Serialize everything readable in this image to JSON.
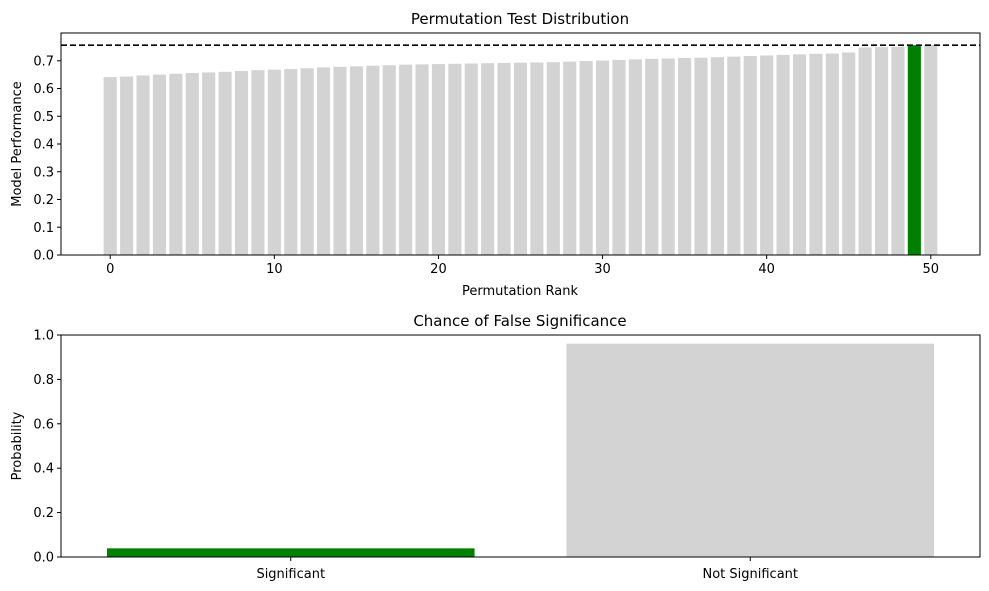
{
  "chart_data": [
    {
      "type": "bar",
      "title": "Permutation Test Distribution",
      "xlabel": "Permutation Rank",
      "ylabel": "Model Performance",
      "xlim": [
        -3,
        53
      ],
      "ylim": [
        0,
        0.8
      ],
      "xticks": [
        0,
        10,
        20,
        30,
        40,
        50
      ],
      "yticks": [
        0.0,
        0.1,
        0.2,
        0.3,
        0.4,
        0.5,
        0.6,
        0.7
      ],
      "x": [
        0,
        1,
        2,
        3,
        4,
        5,
        6,
        7,
        8,
        9,
        10,
        11,
        12,
        13,
        14,
        15,
        16,
        17,
        18,
        19,
        20,
        21,
        22,
        23,
        24,
        25,
        26,
        27,
        28,
        29,
        30,
        31,
        32,
        33,
        34,
        35,
        36,
        37,
        38,
        39,
        40,
        41,
        42,
        43,
        44,
        45,
        46,
        47,
        48,
        49,
        50
      ],
      "values": [
        0.641,
        0.643,
        0.647,
        0.65,
        0.653,
        0.656,
        0.658,
        0.66,
        0.663,
        0.666,
        0.668,
        0.67,
        0.673,
        0.676,
        0.678,
        0.68,
        0.682,
        0.684,
        0.686,
        0.687,
        0.688,
        0.689,
        0.69,
        0.691,
        0.692,
        0.693,
        0.694,
        0.695,
        0.697,
        0.699,
        0.701,
        0.703,
        0.705,
        0.707,
        0.708,
        0.71,
        0.711,
        0.713,
        0.715,
        0.717,
        0.719,
        0.721,
        0.723,
        0.725,
        0.726,
        0.73,
        0.748,
        0.749,
        0.75,
        0.756,
        0.757
      ],
      "highlight_index": 49,
      "reference_line": 0.756,
      "colors": {
        "default": "#d3d3d3",
        "highlight": "#008000",
        "line": "#000000"
      }
    },
    {
      "type": "bar",
      "title": "Chance of False Significance",
      "xlabel": "",
      "ylabel": "Probability",
      "ylim": [
        0,
        1
      ],
      "yticks": [
        0.0,
        0.2,
        0.4,
        0.6,
        0.8,
        1.0
      ],
      "categories": [
        "Significant",
        "Not Significant"
      ],
      "values": [
        0.039,
        0.961
      ],
      "colors": [
        "#008000",
        "#d3d3d3"
      ]
    }
  ]
}
